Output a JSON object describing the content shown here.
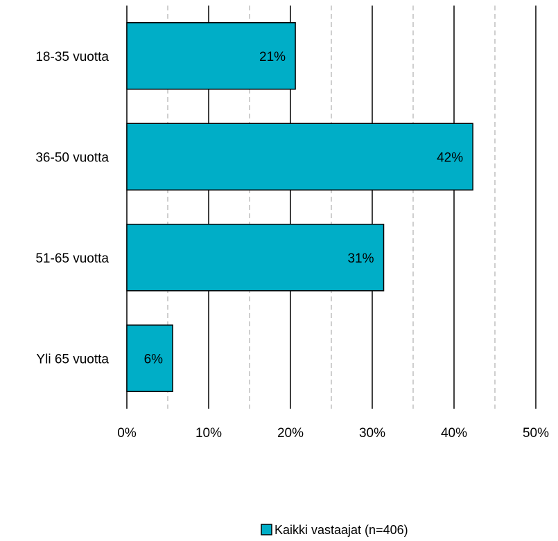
{
  "chart_data": {
    "type": "bar",
    "orientation": "horizontal",
    "categories": [
      "18-35 vuotta",
      "36-50 vuotta",
      "51-65 vuotta",
      "Yli 65 vuotta"
    ],
    "series": [
      {
        "name": "Kaikki vastaajat (n=406)",
        "values": [
          20.6,
          42.3,
          31.4,
          5.6
        ],
        "labels": [
          "21%",
          "42%",
          "31%",
          "6%"
        ],
        "color": "#00AEC7"
      }
    ],
    "xticks": [
      "0%",
      "10%",
      "20%",
      "30%",
      "40%",
      "50%"
    ],
    "xlim": [
      0,
      50
    ],
    "grid": "vertical major solid, minor dashed",
    "legend": "bottom-center"
  }
}
